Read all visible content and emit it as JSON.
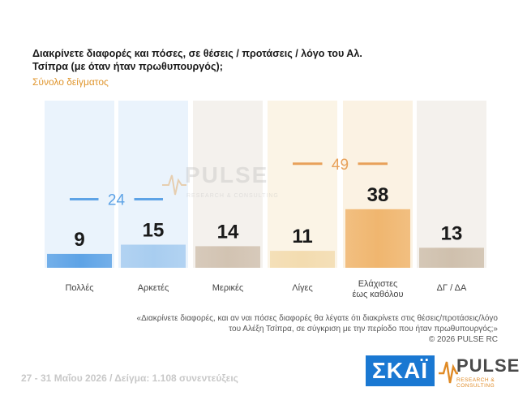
{
  "header": {
    "title": "Διακρίνετε διαφορές και πόσες, σε θέσεις / προτάσεις / λόγο του Αλ. Τσίπρα (με όταν ήταν πρωθυπουργός);",
    "subtitle": "Σύνολο δείγματος"
  },
  "chart_data": {
    "type": "bar",
    "categories": [
      "Πολλές",
      "Αρκετές",
      "Μερικές",
      "Λίγες",
      "Ελάχιστες έως καθόλου",
      "ΔΓ / ΔΑ"
    ],
    "category_lines": [
      [
        "Πολλές"
      ],
      [
        "Αρκετές"
      ],
      [
        "Μερικές"
      ],
      [
        "Λίγες"
      ],
      [
        "Ελάχιστες",
        "έως καθόλου"
      ],
      [
        "ΔΓ / ΔΑ"
      ]
    ],
    "values": [
      9,
      15,
      14,
      11,
      38,
      13
    ],
    "bar_colors": [
      "#5ea3e6",
      "#a8cdf0",
      "#d2c3b2",
      "#f3dcb0",
      "#f0b66f",
      "#cfc0ad"
    ],
    "column_bg": [
      "#eaf3fc",
      "#eaf3fc",
      "#f4f1ed",
      "#fbf4e6",
      "#fbf2e3",
      "#f4f1ed"
    ],
    "groups": [
      {
        "label": "24",
        "from": 0,
        "to": 1,
        "color": "#5ea3e6"
      },
      {
        "label": "49",
        "from": 3,
        "to": 4,
        "color": "#e8a15a"
      }
    ],
    "ylim": [
      0,
      50
    ]
  },
  "watermark": {
    "name": "PULSE",
    "sub": "RESEARCH & CONSULTING"
  },
  "footnote": {
    "line1": "«Διακρίνετε διαφορές, και αν ναι πόσες διαφορές θα λέγατε ότι διακρίνετε στις θέσεις/προτάσεις/λόγο",
    "line2": "του Αλέξη Τσίπρα, σε σύγκριση με την περίοδο που ήταν πρωθυπουργός;»",
    "line3": "©  2026  PULSE RC"
  },
  "footer": {
    "survey_info": "27 - 31  Μαΐου 2026  /  Δείγμα:  1.108 συνεντεύξεις"
  },
  "logos": {
    "skai": "ΣΚΑΪ",
    "pulse_name": "PULSE",
    "pulse_sub": "RESEARCH & CONSULTING"
  }
}
